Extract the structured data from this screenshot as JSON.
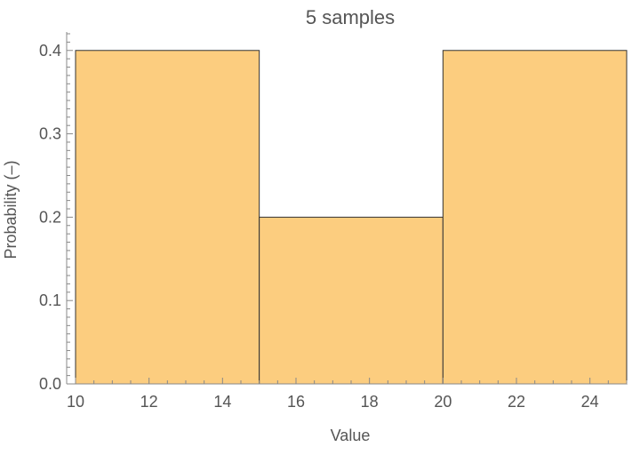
{
  "chart_data": {
    "type": "bar",
    "title": "5 samples",
    "xlabel": "Value",
    "ylabel": "Probability (–)",
    "bins": [
      {
        "x0": 10,
        "x1": 15,
        "value": 0.4
      },
      {
        "x0": 15,
        "x1": 20,
        "value": 0.2
      },
      {
        "x0": 20,
        "x1": 25,
        "value": 0.4
      }
    ],
    "xlim": [
      10,
      25
    ],
    "ylim": [
      0,
      0.42
    ],
    "x_ticks": [
      10,
      12,
      14,
      16,
      18,
      20,
      22,
      24
    ],
    "y_ticks": [
      0.0,
      0.1,
      0.2,
      0.3,
      0.4
    ],
    "x_tick_labels": [
      "10",
      "12",
      "14",
      "16",
      "18",
      "20",
      "22",
      "24"
    ],
    "y_tick_labels": [
      "0.0",
      "0.1",
      "0.2",
      "0.3",
      "0.4"
    ],
    "bar_color": "#fccd7f",
    "grid": false
  }
}
